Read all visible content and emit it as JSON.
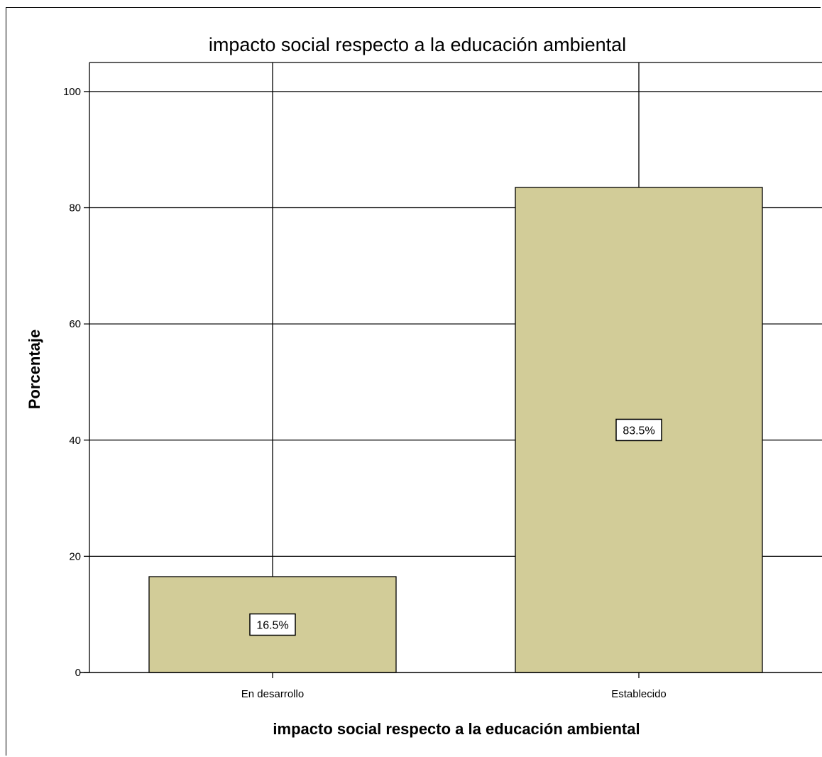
{
  "chart_data": {
    "type": "bar",
    "title": "impacto social respecto a la educación ambiental",
    "xlabel": "impacto social respecto a la educación ambiental",
    "ylabel": "Porcentaje",
    "categories": [
      "En desarrollo",
      "Establecido"
    ],
    "values": [
      16.5,
      83.5
    ],
    "data_labels": [
      "16.5%",
      "83.5%"
    ],
    "ylim": [
      0,
      105
    ],
    "yticks": [
      0,
      20,
      40,
      60,
      80,
      100
    ],
    "ytick_labels": [
      "0",
      "20",
      "40",
      "60",
      "80",
      "100"
    ],
    "grid": true,
    "legend": "none",
    "bar_color": "#d2cc98",
    "bar_edge_color": "#000000"
  }
}
